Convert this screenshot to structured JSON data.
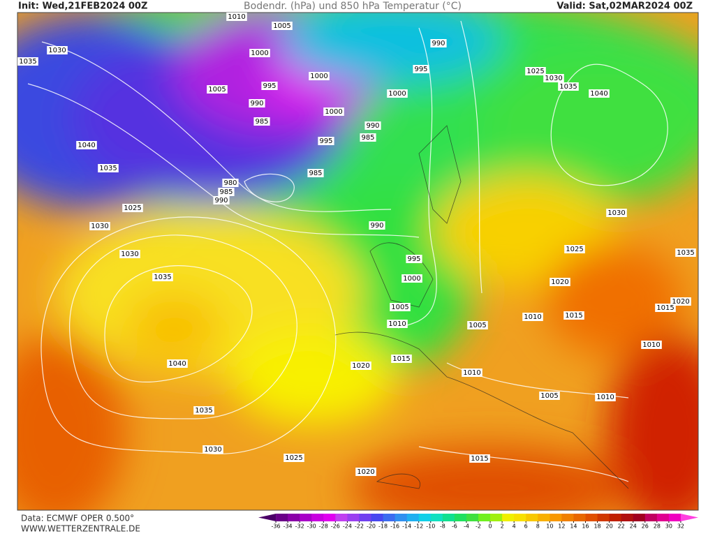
{
  "header": {
    "init": "Init: Wed,21FEB2024 00Z",
    "title": "Bodendr. (hPa) und 850 hPa Temperatur (°C)",
    "valid": "Valid: Sat,02MAR2024 00Z"
  },
  "footer": {
    "source": "Data: ECMWF OPER 0.500°",
    "site": "WWW.WETTERZENTRALE.DE"
  },
  "isobar_labels": [
    "1010",
    "1005",
    "1030",
    "1035",
    "1000",
    "1000",
    "1005",
    "995",
    "990",
    "995",
    "1025",
    "1030",
    "1035",
    "1040",
    "1000",
    "990",
    "1000",
    "985",
    "990",
    "985",
    "995",
    "1040",
    "1035",
    "985",
    "980",
    "985",
    "990",
    "1025",
    "1030",
    "990",
    "1030",
    "1030",
    "1025",
    "995",
    "1035",
    "1000",
    "1020",
    "1035",
    "1005",
    "1020",
    "1015",
    "1010",
    "1010",
    "1015",
    "1005",
    "1010",
    "1040",
    "1015",
    "1020",
    "1010",
    "1005",
    "1010",
    "1035",
    "1030",
    "1025",
    "1015",
    "1020"
  ],
  "colorbar": {
    "labels": [
      -36,
      -34,
      -32,
      -30,
      -28,
      -26,
      -24,
      -22,
      -20,
      -18,
      -16,
      -14,
      -12,
      -10,
      -8,
      -6,
      -4,
      -2,
      0,
      2,
      4,
      6,
      8,
      10,
      12,
      14,
      16,
      18,
      20,
      22,
      24,
      26,
      28,
      30,
      32
    ],
    "colors": [
      "#4b0068",
      "#6a0088",
      "#8a00a8",
      "#a800c8",
      "#c800e0",
      "#e000f0",
      "#c040f0",
      "#9a40f0",
      "#7040f0",
      "#4848f0",
      "#3c6cf0",
      "#3090f0",
      "#20b0f0",
      "#10d0e8",
      "#10e0c0",
      "#10e090",
      "#20e060",
      "#40e040",
      "#70f020",
      "#a0f010",
      "#f0f000",
      "#f8e000",
      "#f8c800",
      "#f8b000",
      "#f89800",
      "#f08000",
      "#e86800",
      "#e05000",
      "#d03800",
      "#c02000",
      "#b01010",
      "#a00020",
      "#c00060",
      "#e00090",
      "#f000c0",
      "#ff40e0"
    ]
  }
}
